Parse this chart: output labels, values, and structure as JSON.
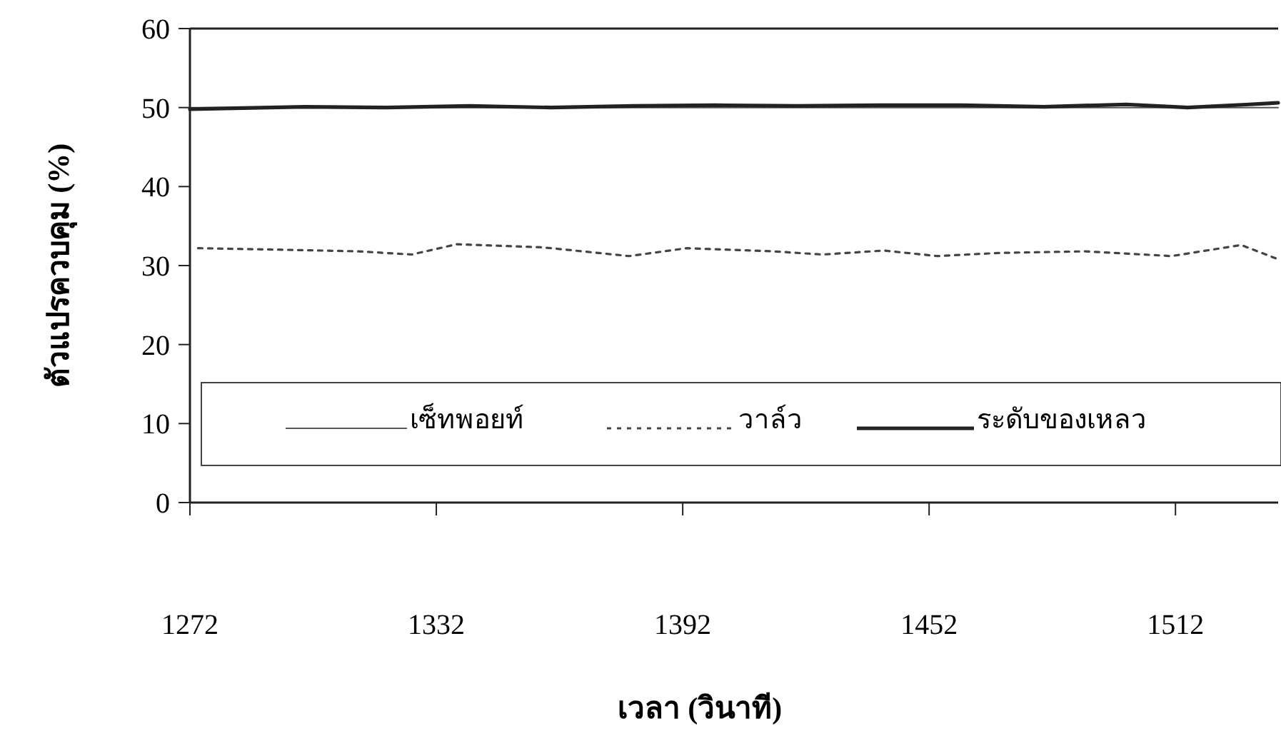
{
  "chart_data": {
    "type": "line",
    "xlabel": "เวลา (วินาที)",
    "ylabel": "ตัวแปรควบคุม (%)",
    "xlim": [
      1272,
      1537
    ],
    "xticks": [
      1272,
      1332,
      1392,
      1452,
      1512
    ],
    "ylim": [
      0,
      60
    ],
    "yticks": [
      0,
      10,
      20,
      30,
      40,
      50,
      60
    ],
    "grid": false,
    "legend": "bottom",
    "marker": "none",
    "series": [
      {
        "name": "เซ็ทพอยท์",
        "color": "#555555",
        "line_style": "solid",
        "x": [
          1272,
          1537
        ],
        "values": [
          50,
          50
        ]
      },
      {
        "name": "วาล์ว",
        "color": "#444444",
        "line_style": "dotted",
        "x": [
          1274,
          1295,
          1313,
          1326,
          1337,
          1358,
          1379,
          1393,
          1414,
          1426,
          1441,
          1454,
          1469,
          1490,
          1511,
          1528,
          1537
        ],
        "values": [
          32.2,
          32.0,
          31.8,
          31.4,
          32.7,
          32.3,
          31.2,
          32.2,
          31.8,
          31.4,
          31.9,
          31.2,
          31.6,
          31.8,
          31.2,
          32.6,
          30.8
        ]
      },
      {
        "name": "ระดับของเหลว",
        "color": "#222222",
        "line_style": "solid",
        "x": [
          1272,
          1300,
          1320,
          1340,
          1360,
          1380,
          1400,
          1420,
          1440,
          1460,
          1480,
          1500,
          1515,
          1530,
          1537
        ],
        "values": [
          49.8,
          50.1,
          50.0,
          50.2,
          50.0,
          50.2,
          50.3,
          50.2,
          50.3,
          50.3,
          50.1,
          50.4,
          50.0,
          50.4,
          50.6
        ]
      }
    ]
  }
}
